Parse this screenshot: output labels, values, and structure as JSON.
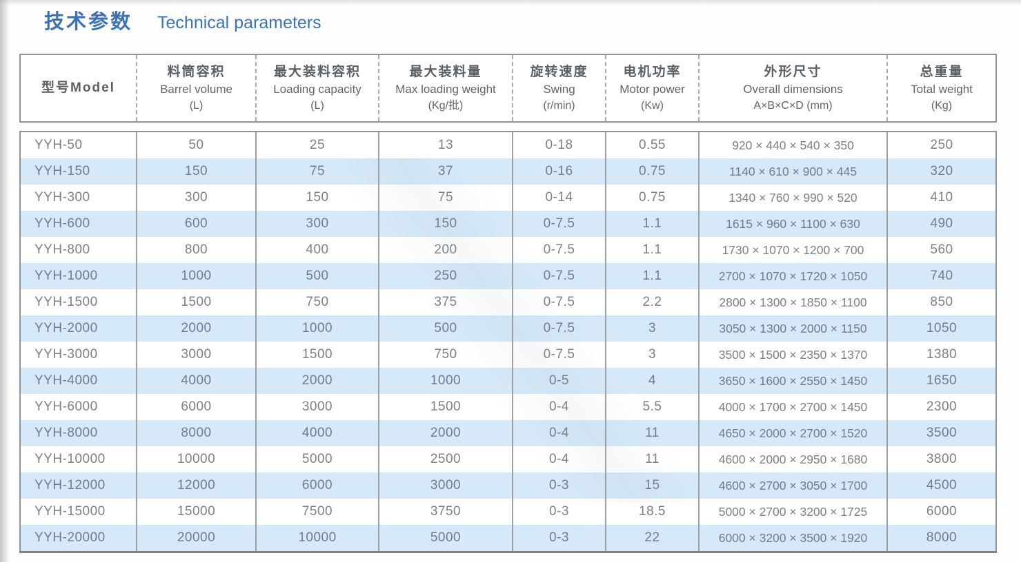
{
  "header": {
    "title_zh": "技术参数",
    "title_en": "Technical parameters"
  },
  "colors": {
    "accent_blue": "#3b72b6",
    "row_shade": "#d5e9f8",
    "table_border": "#8f9396",
    "body_text": "#7b8187"
  },
  "table": {
    "columns": [
      {
        "key": "model",
        "zh": "型号Model",
        "en": "",
        "unit": ""
      },
      {
        "key": "barrel-volume",
        "zh": "料筒容积",
        "en": "Barrel volume",
        "unit": "(L)"
      },
      {
        "key": "loading-capacity",
        "zh": "最大装料容积",
        "en": "Loading capacity",
        "unit": "(L)"
      },
      {
        "key": "max-loading-weight",
        "zh": "最大装料量",
        "en": "Max loading weight",
        "unit": "(Kg/批)"
      },
      {
        "key": "swing",
        "zh": "旋转速度",
        "en": "Swing",
        "unit": "(r/min)"
      },
      {
        "key": "motor-power",
        "zh": "电机功率",
        "en": "Motor power",
        "unit": "(Kw)"
      },
      {
        "key": "overall-dimensions",
        "zh": "外形尺寸",
        "en": "Overall dimensions",
        "unit": "A×B×C×D (mm)"
      },
      {
        "key": "total-weight",
        "zh": "总重量",
        "en": "Total weight",
        "unit": "(Kg)"
      }
    ],
    "rows": [
      [
        "YYH-50",
        "50",
        "25",
        "13",
        "0-18",
        "0.55",
        "920 × 440 × 540 × 350",
        "250"
      ],
      [
        "YYH-150",
        "150",
        "75",
        "37",
        "0-16",
        "0.75",
        "1140 × 610 × 900 × 445",
        "320"
      ],
      [
        "YYH-300",
        "300",
        "150",
        "75",
        "0-14",
        "0.75",
        "1340 × 760 × 990 × 520",
        "410"
      ],
      [
        "YYH-600",
        "600",
        "300",
        "150",
        "0-7.5",
        "1.1",
        "1615 × 960 × 1100 × 630",
        "490"
      ],
      [
        "YYH-800",
        "800",
        "400",
        "200",
        "0-7.5",
        "1.1",
        "1730 × 1070 × 1200 × 700",
        "560"
      ],
      [
        "YYH-1000",
        "1000",
        "500",
        "250",
        "0-7.5",
        "1.1",
        "2700 × 1070 × 1720 × 1050",
        "740"
      ],
      [
        "YYH-1500",
        "1500",
        "750",
        "375",
        "0-7.5",
        "2.2",
        "2800 × 1300 × 1850 × 1100",
        "850"
      ],
      [
        "YYH-2000",
        "2000",
        "1000",
        "500",
        "0-7.5",
        "3",
        "3050 × 1300 × 2000 × 1150",
        "1050"
      ],
      [
        "YYH-3000",
        "3000",
        "1500",
        "750",
        "0-7.5",
        "3",
        "3500 × 1500 × 2350 × 1370",
        "1380"
      ],
      [
        "YYH-4000",
        "4000",
        "2000",
        "1000",
        "0-5",
        "4",
        "3650 × 1600 × 2550 × 1450",
        "1650"
      ],
      [
        "YYH-6000",
        "6000",
        "3000",
        "1500",
        "0-4",
        "5.5",
        "4000 × 1700 × 2700 × 1450",
        "2300"
      ],
      [
        "YYH-8000",
        "8000",
        "4000",
        "2000",
        "0-4",
        "11",
        "4650 × 2000 × 2700 × 1520",
        "3500"
      ],
      [
        "YYH-10000",
        "10000",
        "5000",
        "2500",
        "0-4",
        "11",
        "4600 × 2000 × 2950 × 1680",
        "3800"
      ],
      [
        "YYH-12000",
        "12000",
        "6000",
        "3000",
        "0-3",
        "15",
        "4600 × 2700 × 3050 × 1700",
        "4500"
      ],
      [
        "YYH-15000",
        "15000",
        "7500",
        "3750",
        "0-3",
        "18.5",
        "5000 × 2700 × 3200 × 1725",
        "6000"
      ],
      [
        "YYH-20000",
        "20000",
        "10000",
        "5000",
        "0-3",
        "22",
        "6000 × 3200 × 3500 × 1920",
        "8000"
      ]
    ]
  }
}
